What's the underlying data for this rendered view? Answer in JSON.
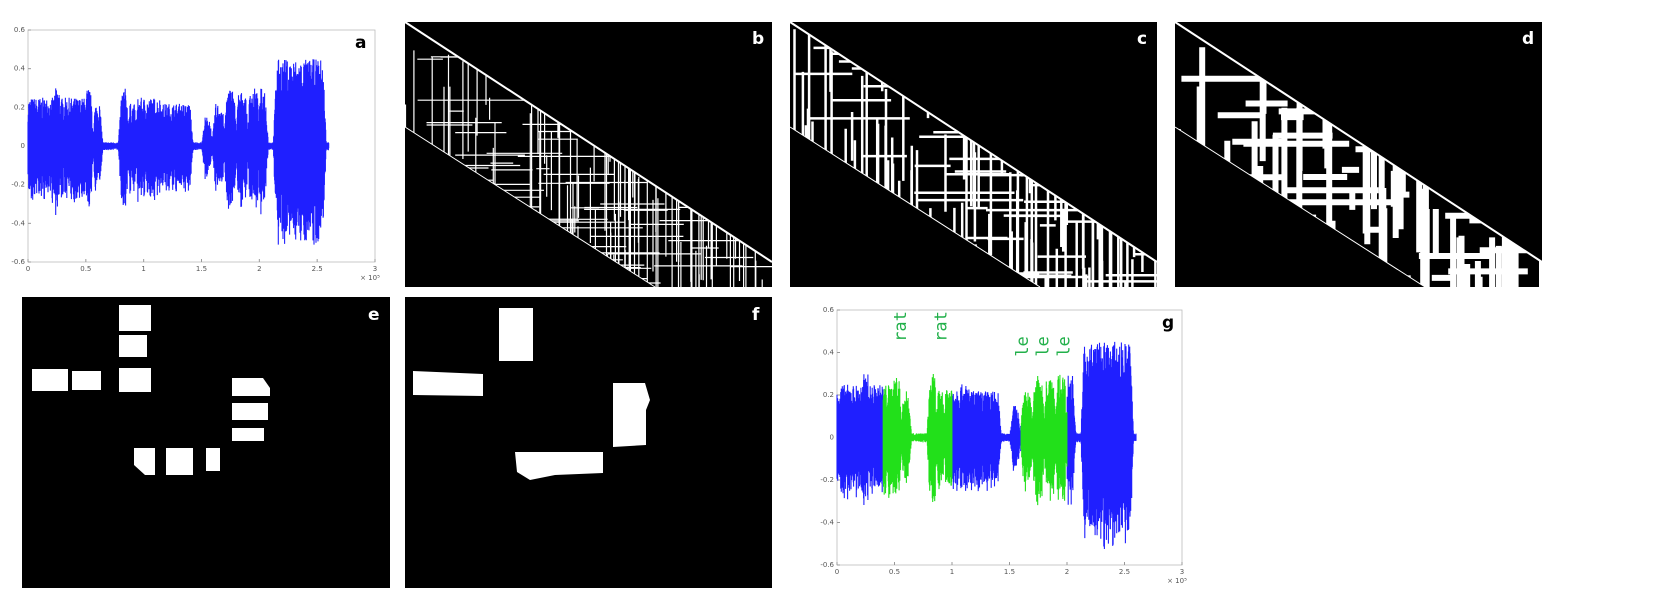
{
  "panels": {
    "a": {
      "label": "a",
      "yticks": [
        "0.6",
        "0.4",
        "0.2",
        "0",
        "-0.2",
        "-0.4",
        "-0.6"
      ],
      "xticks": [
        "0",
        "0.5",
        "1",
        "1.5",
        "2",
        "2.5",
        "3"
      ],
      "x_multiplier": "× 10⁵"
    },
    "b": {
      "label": "b"
    },
    "c": {
      "label": "c"
    },
    "d": {
      "label": "d"
    },
    "e": {
      "label": "e"
    },
    "f": {
      "label": "f"
    },
    "g": {
      "label": "g",
      "yticks": [
        "0.6",
        "0.4",
        "0.2",
        "0",
        "-0.2",
        "-0.4",
        "-0.6"
      ],
      "xticks": [
        "0",
        "0.5",
        "1",
        "1.5",
        "2",
        "2.5",
        "3"
      ],
      "x_multiplier": "× 10⁵",
      "annotations": [
        "rat",
        "rat",
        "le",
        "le",
        "le"
      ]
    }
  }
}
